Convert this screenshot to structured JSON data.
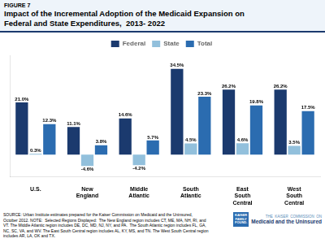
{
  "chart_data": {
    "type": "bar",
    "title": "Impact of the Incremental Adoption of the Medicaid Expansion on\nFederal and State Expenditures,  2013- 2022",
    "categories": [
      "U.S.",
      "New\nEngland",
      "Middle\nAtlantic",
      "South\nAtlantic",
      "East\nSouth\nCentral",
      "West\nSouth\nCentral"
    ],
    "series": [
      {
        "name": "Federal",
        "color": "#1b3a6e",
        "values": [
          21.0,
          11.1,
          14.6,
          34.5,
          26.2,
          26.2
        ],
        "value_labels": [
          "21.0%",
          "11.1%",
          "14.6%",
          "34.5%",
          "26.2%",
          "26.2%"
        ]
      },
      {
        "name": "State",
        "color": "#92c0dc",
        "values": [
          0.3,
          -4.6,
          -4.2,
          4.5,
          4.6,
          3.5
        ],
        "value_labels": [
          "0.3%",
          "-4.6%",
          "-4.2%",
          "4.5%",
          "4.6%",
          "3.5%"
        ]
      },
      {
        "name": "Total",
        "color": "#2b6cb0",
        "values": [
          12.3,
          3.8,
          5.7,
          23.3,
          19.8,
          17.5
        ],
        "value_labels": [
          "12.3%",
          "3.8%",
          "5.7%",
          "23.3%",
          "19.8%",
          "17.5%"
        ]
      }
    ],
    "ylim": [
      -9,
      40
    ],
    "grid": false,
    "legend": "top",
    "data_labels": true,
    "tick_labels": "x",
    "annotations": [
      "FIGURE 7",
      "SOURCE: Urban Institute estimates prepared for the Kaiser Commission on Medicaid and the Uninsured,\nOctober 2012. NOTE:  Selected Regions Displayed:  The New England region includes CT, ME, MA, NH, RI, and\nVT. The Middle Atlantic region includes DE, DC, MD, NJ, NY, and PA.  The South Atlantic region includes FL, GA,\nNC, SC, VA, and WV. The East South Central region includes AL, KY, MS, and TN. The West South Central region\nincludes AR, LA, OK and TX.",
      "KAISER\nFAMILY\nFOUND.",
      "THE  KAISER  COMMISSION  ON",
      "Medicaid and the Uninsured"
    ]
  }
}
